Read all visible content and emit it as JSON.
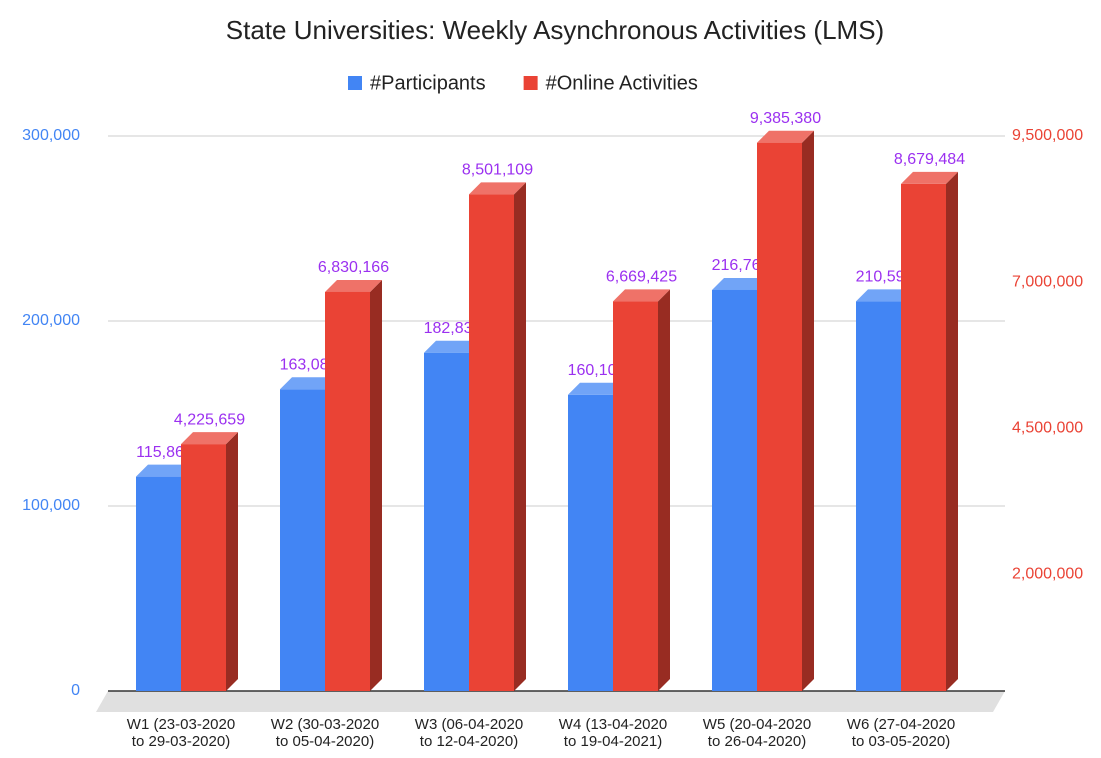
{
  "chart_data": {
    "type": "bar3d",
    "title": "State Universities: Weekly Asynchronous Activities (LMS)",
    "categories": [
      "W1 (23-03-2020 to 29-03-2020)",
      "W2 (30-03-2020 to 05-04-2020)",
      "W3 (06-04-2020 to 12-04-2020)",
      "W4 (13-04-2020 to 19-04-2021)",
      "W5 (20-04-2020 to 26-04-2020)",
      "W6 (27-04-2020 to 03-05-2020)"
    ],
    "series": [
      {
        "name": "#Participants",
        "color": "#4285f4",
        "axis": "y",
        "values": [
          115867,
          163086,
          182838,
          160108,
          216760,
          210596
        ],
        "value_labels": [
          "115,867",
          "163,086",
          "182,838",
          "160,108",
          "216,760",
          "210,596"
        ]
      },
      {
        "name": "#Online Activities",
        "color": "#ea4335",
        "axis": "y2",
        "values": [
          4225659,
          6830166,
          8501109,
          6669425,
          9385380,
          8679484
        ],
        "value_labels": [
          "4,225,659",
          "6,830,166",
          "8,501,109",
          "6,669,425",
          "9,385,380",
          "8,679,484"
        ]
      }
    ],
    "ylim": [
      0,
      300000
    ],
    "yticks": [
      0,
      {
        "value": 100000,
        "label": "100,000"
      },
      {
        "value": 200000,
        "label": "200,000"
      },
      {
        "value": 300000,
        "label": "300,000"
      }
    ],
    "y2lim": [
      0,
      9500000
    ],
    "y2ticks": [
      {
        "value": 2000000,
        "label": "2,000,000"
      },
      {
        "value": 4500000,
        "label": "4,500,000"
      },
      {
        "value": 7000000,
        "label": "7,000,000"
      },
      {
        "value": 9500000,
        "label": "9,500,000"
      }
    ],
    "grid": true,
    "legend": "top"
  }
}
